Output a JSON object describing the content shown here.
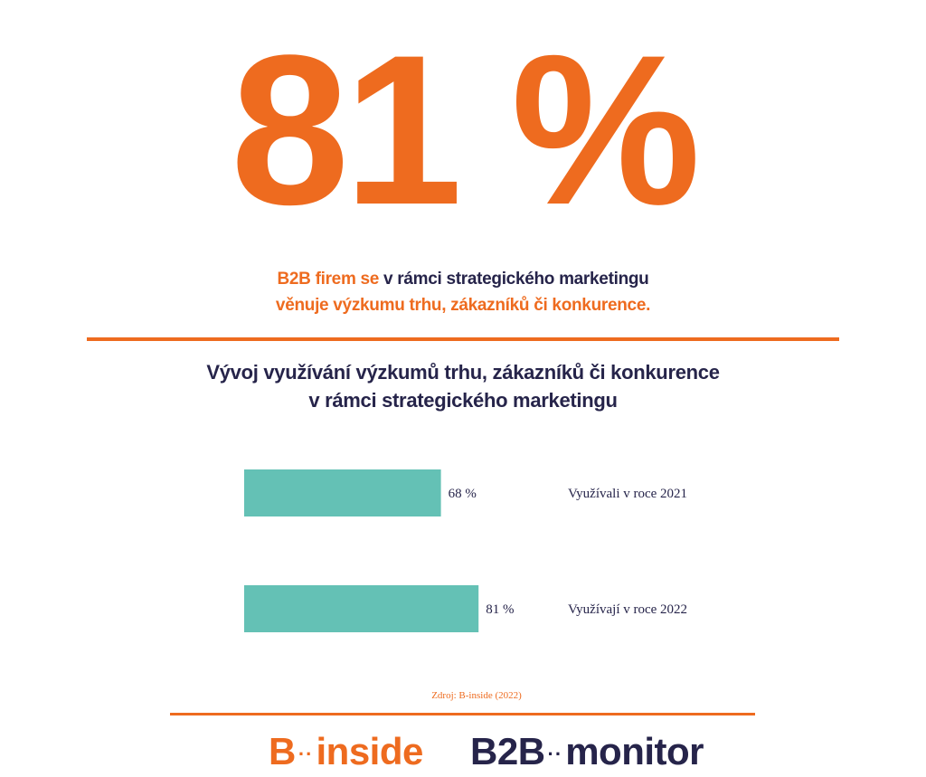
{
  "headline": {
    "value": "81 %"
  },
  "subtitle": {
    "part_orange_1": "B2B firem se",
    "part_navy": " v rámci strategického marketingu",
    "line2": "věnuje výzkumu trhu, zákazníků či konkurence."
  },
  "chart_title": {
    "line1": "Vývoj využívání výzkumů trhu, zákazníků či konkurence",
    "line2": "v rámci strategického marketingu"
  },
  "chart_data": {
    "type": "bar",
    "orientation": "horizontal",
    "title": "Vývoj využívání výzkumů trhu, zákazníků či konkurence v rámci strategického marketingu",
    "categories": [
      "Využívali v roce 2021",
      "Využívají v roce 2022"
    ],
    "values": [
      68,
      81
    ],
    "value_labels": [
      "68 %",
      "81 %"
    ],
    "unit": "%",
    "xlim": [
      0,
      100
    ],
    "grid": false,
    "bar_color": "#64c1b5"
  },
  "source": "Zdroj: B-inside (2022)",
  "logos": {
    "binside": {
      "prefix": "B",
      "dots": "··",
      "suffix": "inside"
    },
    "b2bmonitor": {
      "prefix": "B2B",
      "dots": "··",
      "suffix": "monitor"
    }
  },
  "colors": {
    "accent": "#ee6b1f",
    "navy": "#26244a",
    "bar": "#64c1b5"
  }
}
